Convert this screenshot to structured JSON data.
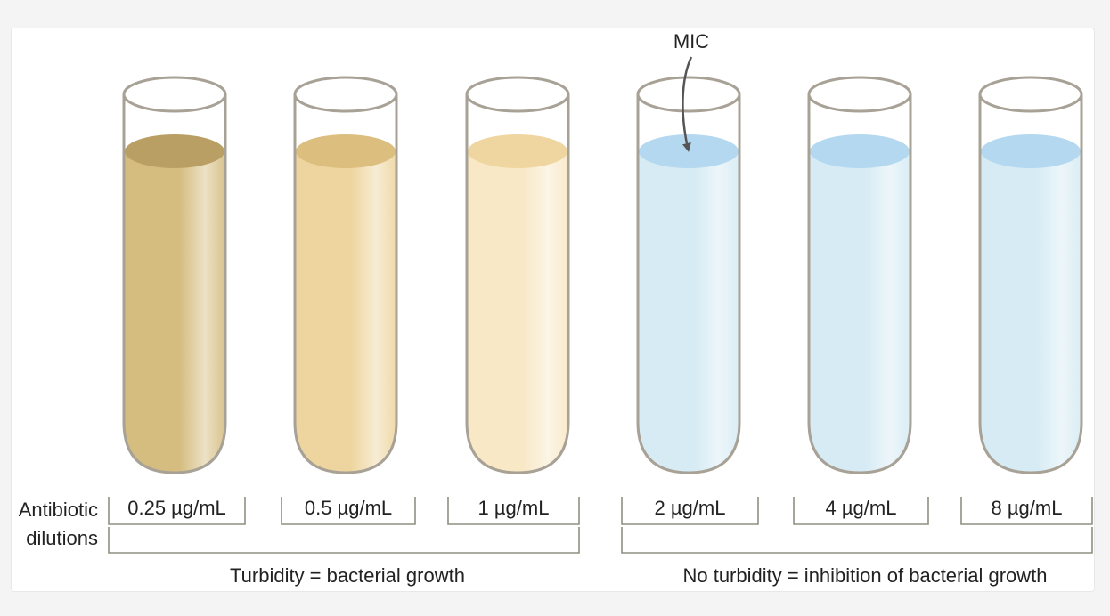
{
  "annotation": {
    "label": "MIC"
  },
  "row_label": {
    "line1": "Antibiotic",
    "line2": "dilutions"
  },
  "tubes": [
    {
      "concentration": "0.25 µg/mL",
      "liquid": "#d5bd80",
      "surface": "#b99f64"
    },
    {
      "concentration": "0.5 µg/mL",
      "liquid": "#eed59f",
      "surface": "#dcbf7f"
    },
    {
      "concentration": "1 µg/mL",
      "liquid": "#f8e8c6",
      "surface": "#efd6a1"
    },
    {
      "concentration": "2 µg/mL",
      "liquid": "#d6ebf4",
      "surface": "#b3d8ef"
    },
    {
      "concentration": "4 µg/mL",
      "liquid": "#d6ebf4",
      "surface": "#b3d8ef"
    },
    {
      "concentration": "8 µg/mL",
      "liquid": "#d6ebf4",
      "surface": "#b3d8ef"
    }
  ],
  "groups": [
    {
      "caption": "Turbidity = bacterial growth"
    },
    {
      "caption": "No turbidity = inhibition of bacterial growth"
    }
  ],
  "colors": {
    "glass_outline": "#a8a196",
    "bracket": "#8f8f82",
    "arrow": "#555555"
  }
}
